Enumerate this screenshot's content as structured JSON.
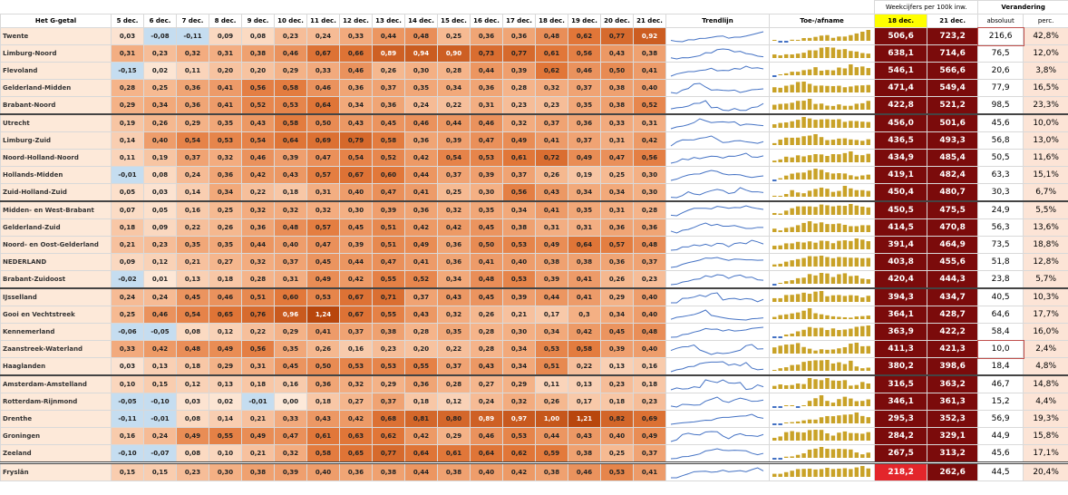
{
  "header": {
    "group_weekly": "Weekcijfers per 100k inw.",
    "group_change": "Verandering",
    "columns": [
      "Het G-getal",
      "5 dec.",
      "6 dec.",
      "7 dec.",
      "8 dec.",
      "9 dec.",
      "10 dec.",
      "11 dec.",
      "12 dec.",
      "13 dec.",
      "14 dec.",
      "15 dec.",
      "16 dec.",
      "17 dec.",
      "18 dec.",
      "19 dec.",
      "20 dec.",
      "21 dec.",
      "Trendlijn",
      "Toe-/afname",
      "18 dec.",
      "21 dec.",
      "absoluut",
      "perc."
    ]
  },
  "table": {
    "rows": [
      {
        "region": "Twente",
        "days": [
          "0,03",
          "-0,08",
          "-0,11",
          "0,09",
          "0,08",
          "0,23",
          "0,24",
          "0,33",
          "0,44",
          "0,48",
          "0,25",
          "0,36",
          "0,36",
          "0,48",
          "0,62",
          "0,77",
          "0,92"
        ],
        "w18": "506,6",
        "w21": "723,2",
        "abs": "216,6",
        "perc": "42,8%"
      },
      {
        "region": "Limburg-Noord",
        "days": [
          "0,31",
          "0,23",
          "0,32",
          "0,31",
          "0,38",
          "0,46",
          "0,67",
          "0,66",
          "0,89",
          "0,94",
          "0,90",
          "0,73",
          "0,77",
          "0,61",
          "0,56",
          "0,43",
          "0,38"
        ],
        "w18": "638,1",
        "w21": "714,6",
        "abs": "76,5",
        "perc": "12,0%"
      },
      {
        "region": "Flevoland",
        "days": [
          "-0,15",
          "0,02",
          "0,11",
          "0,20",
          "0,20",
          "0,29",
          "0,33",
          "0,46",
          "0,26",
          "0,30",
          "0,28",
          "0,44",
          "0,39",
          "0,62",
          "0,46",
          "0,50",
          "0,41"
        ],
        "w18": "546,1",
        "w21": "566,6",
        "abs": "20,6",
        "perc": "3,8%"
      },
      {
        "region": "Gelderland-Midden",
        "days": [
          "0,28",
          "0,25",
          "0,36",
          "0,41",
          "0,56",
          "0,58",
          "0,46",
          "0,36",
          "0,37",
          "0,35",
          "0,34",
          "0,36",
          "0,28",
          "0,32",
          "0,37",
          "0,38",
          "0,40"
        ],
        "w18": "471,4",
        "w21": "549,4",
        "abs": "77,9",
        "perc": "16,5%"
      },
      {
        "region": "Brabant-Noord",
        "days": [
          "0,29",
          "0,34",
          "0,36",
          "0,41",
          "0,52",
          "0,53",
          "0,64",
          "0,34",
          "0,36",
          "0,24",
          "0,22",
          "0,31",
          "0,23",
          "0,23",
          "0,35",
          "0,38",
          "0,52"
        ],
        "w18": "422,8",
        "w21": "521,2",
        "abs": "98,5",
        "perc": "23,3%"
      },
      {
        "region": "Utrecht",
        "days": [
          "0,19",
          "0,26",
          "0,29",
          "0,35",
          "0,43",
          "0,58",
          "0,50",
          "0,43",
          "0,45",
          "0,46",
          "0,44",
          "0,46",
          "0,32",
          "0,37",
          "0,36",
          "0,33",
          "0,31"
        ],
        "w18": "456,0",
        "w21": "501,6",
        "abs": "45,6",
        "perc": "10,0%"
      },
      {
        "region": "Limburg-Zuid",
        "days": [
          "0,14",
          "0,40",
          "0,54",
          "0,53",
          "0,54",
          "0,64",
          "0,69",
          "0,79",
          "0,58",
          "0,36",
          "0,39",
          "0,47",
          "0,49",
          "0,41",
          "0,37",
          "0,31",
          "0,42"
        ],
        "w18": "436,5",
        "w21": "493,3",
        "abs": "56,8",
        "perc": "13,0%"
      },
      {
        "region": "Noord-Holland-Noord",
        "days": [
          "0,11",
          "0,19",
          "0,37",
          "0,32",
          "0,46",
          "0,39",
          "0,47",
          "0,54",
          "0,52",
          "0,42",
          "0,54",
          "0,53",
          "0,61",
          "0,72",
          "0,49",
          "0,47",
          "0,56"
        ],
        "w18": "434,9",
        "w21": "485,4",
        "abs": "50,5",
        "perc": "11,6%"
      },
      {
        "region": "Hollands-Midden",
        "days": [
          "-0,01",
          "0,08",
          "0,24",
          "0,36",
          "0,42",
          "0,43",
          "0,57",
          "0,67",
          "0,60",
          "0,44",
          "0,37",
          "0,39",
          "0,37",
          "0,26",
          "0,19",
          "0,25",
          "0,30"
        ],
        "w18": "419,1",
        "w21": "482,4",
        "abs": "63,3",
        "perc": "15,1%"
      },
      {
        "region": "Zuid-Holland-Zuid",
        "days": [
          "0,05",
          "0,03",
          "0,14",
          "0,34",
          "0,22",
          "0,18",
          "0,31",
          "0,40",
          "0,47",
          "0,41",
          "0,25",
          "0,30",
          "0,56",
          "0,43",
          "0,34",
          "0,34",
          "0,30"
        ],
        "w18": "450,4",
        "w21": "480,7",
        "abs": "30,3",
        "perc": "6,7%"
      },
      {
        "region": "Midden- en West-Brabant",
        "days": [
          "0,07",
          "0,05",
          "0,16",
          "0,25",
          "0,32",
          "0,32",
          "0,32",
          "0,30",
          "0,39",
          "0,36",
          "0,32",
          "0,35",
          "0,34",
          "0,41",
          "0,35",
          "0,31",
          "0,28"
        ],
        "w18": "450,5",
        "w21": "475,5",
        "abs": "24,9",
        "perc": "5,5%"
      },
      {
        "region": "Gelderland-Zuid",
        "days": [
          "0,18",
          "0,09",
          "0,22",
          "0,26",
          "0,36",
          "0,48",
          "0,57",
          "0,45",
          "0,51",
          "0,42",
          "0,42",
          "0,45",
          "0,38",
          "0,31",
          "0,31",
          "0,36",
          "0,36"
        ],
        "w18": "414,5",
        "w21": "470,8",
        "abs": "56,3",
        "perc": "13,6%"
      },
      {
        "region": "Noord- en Oost-Gelderland",
        "days": [
          "0,21",
          "0,23",
          "0,35",
          "0,35",
          "0,44",
          "0,40",
          "0,47",
          "0,39",
          "0,51",
          "0,49",
          "0,36",
          "0,50",
          "0,53",
          "0,49",
          "0,64",
          "0,57",
          "0,48"
        ],
        "w18": "391,4",
        "w21": "464,9",
        "abs": "73,5",
        "perc": "18,8%"
      },
      {
        "region": "NEDERLAND",
        "days": [
          "0,09",
          "0,12",
          "0,21",
          "0,27",
          "0,32",
          "0,37",
          "0,45",
          "0,44",
          "0,47",
          "0,41",
          "0,36",
          "0,41",
          "0,40",
          "0,38",
          "0,38",
          "0,36",
          "0,37"
        ],
        "w18": "403,8",
        "w21": "455,6",
        "abs": "51,8",
        "perc": "12,8%"
      },
      {
        "region": "Brabant-Zuidoost",
        "days": [
          "-0,02",
          "0,01",
          "0,13",
          "0,18",
          "0,28",
          "0,31",
          "0,49",
          "0,42",
          "0,55",
          "0,52",
          "0,34",
          "0,48",
          "0,53",
          "0,39",
          "0,41",
          "0,26",
          "0,23"
        ],
        "w18": "420,4",
        "w21": "444,3",
        "abs": "23,8",
        "perc": "5,7%"
      },
      {
        "region": "IJsselland",
        "days": [
          "0,24",
          "0,24",
          "0,45",
          "0,46",
          "0,51",
          "0,60",
          "0,53",
          "0,67",
          "0,71",
          "0,37",
          "0,43",
          "0,45",
          "0,39",
          "0,44",
          "0,41",
          "0,29",
          "0,40"
        ],
        "w18": "394,3",
        "w21": "434,7",
        "abs": "40,5",
        "perc": "10,3%"
      },
      {
        "region": "Gooi en Vechtstreek",
        "days": [
          "0,25",
          "0,46",
          "0,54",
          "0,65",
          "0,76",
          "0,96",
          "1,24",
          "0,67",
          "0,55",
          "0,43",
          "0,32",
          "0,26",
          "0,21",
          "0,17",
          "0,3",
          "0,34",
          "0,40"
        ],
        "w18": "364,1",
        "w21": "428,7",
        "abs": "64,6",
        "perc": "17,7%"
      },
      {
        "region": "Kennemerland",
        "days": [
          "-0,06",
          "-0,05",
          "0,08",
          "0,12",
          "0,22",
          "0,29",
          "0,41",
          "0,37",
          "0,38",
          "0,28",
          "0,35",
          "0,28",
          "0,30",
          "0,34",
          "0,42",
          "0,45",
          "0,48"
        ],
        "w18": "363,9",
        "w21": "422,2",
        "abs": "58,4",
        "perc": "16,0%"
      },
      {
        "region": "Zaanstreek-Waterland",
        "days": [
          "0,33",
          "0,42",
          "0,48",
          "0,49",
          "0,56",
          "0,35",
          "0,26",
          "0,16",
          "0,23",
          "0,20",
          "0,22",
          "0,28",
          "0,34",
          "0,53",
          "0,58",
          "0,39",
          "0,40"
        ],
        "w18": "411,3",
        "w21": "421,3",
        "abs": "10,0",
        "perc": "2,4%"
      },
      {
        "region": "Haaglanden",
        "days": [
          "0,03",
          "0,13",
          "0,18",
          "0,29",
          "0,31",
          "0,45",
          "0,50",
          "0,53",
          "0,53",
          "0,55",
          "0,37",
          "0,43",
          "0,34",
          "0,51",
          "0,22",
          "0,13",
          "0,16"
        ],
        "w18": "380,2",
        "w21": "398,6",
        "abs": "18,4",
        "perc": "4,8%"
      },
      {
        "region": "Amsterdam-Amstelland",
        "days": [
          "0,10",
          "0,15",
          "0,12",
          "0,13",
          "0,18",
          "0,16",
          "0,36",
          "0,32",
          "0,29",
          "0,36",
          "0,28",
          "0,27",
          "0,29",
          "0,11",
          "0,13",
          "0,23",
          "0,18"
        ],
        "w18": "316,5",
        "w21": "363,2",
        "abs": "46,7",
        "perc": "14,8%"
      },
      {
        "region": "Rotterdam-Rijnmond",
        "days": [
          "-0,05",
          "-0,10",
          "0,03",
          "0,02",
          "-0,01",
          "0,00",
          "0,18",
          "0,27",
          "0,37",
          "0,18",
          "0,12",
          "0,24",
          "0,32",
          "0,26",
          "0,17",
          "0,18",
          "0,23"
        ],
        "w18": "346,1",
        "w21": "361,3",
        "abs": "15,2",
        "perc": "4,4%"
      },
      {
        "region": "Drenthe",
        "days": [
          "-0,11",
          "-0,01",
          "0,08",
          "0,14",
          "0,21",
          "0,33",
          "0,43",
          "0,42",
          "0,68",
          "0,81",
          "0,80",
          "0,89",
          "0,97",
          "1,00",
          "1,21",
          "0,82",
          "0,69"
        ],
        "w18": "295,3",
        "w21": "352,3",
        "abs": "56,9",
        "perc": "19,3%"
      },
      {
        "region": "Groningen",
        "days": [
          "0,16",
          "0,24",
          "0,49",
          "0,55",
          "0,49",
          "0,47",
          "0,61",
          "0,63",
          "0,62",
          "0,42",
          "0,29",
          "0,46",
          "0,53",
          "0,44",
          "0,43",
          "0,40",
          "0,49"
        ],
        "w18": "284,2",
        "w21": "329,1",
        "abs": "44,9",
        "perc": "15,8%"
      },
      {
        "region": "Zeeland",
        "days": [
          "-0,10",
          "-0,07",
          "0,08",
          "0,10",
          "0,21",
          "0,32",
          "0,58",
          "0,65",
          "0,77",
          "0,64",
          "0,61",
          "0,64",
          "0,62",
          "0,59",
          "0,38",
          "0,25",
          "0,37"
        ],
        "w18": "267,5",
        "w21": "313,2",
        "abs": "45,6",
        "perc": "17,1%"
      },
      {
        "region": "Fryslân",
        "days": [
          "0,15",
          "0,15",
          "0,23",
          "0,30",
          "0,38",
          "0,39",
          "0,40",
          "0,36",
          "0,38",
          "0,44",
          "0,38",
          "0,40",
          "0,42",
          "0,38",
          "0,46",
          "0,53",
          "0,41"
        ],
        "w18": "218,2",
        "w21": "262,6",
        "abs": "44,5",
        "perc": "20,4%"
      }
    ]
  }
}
